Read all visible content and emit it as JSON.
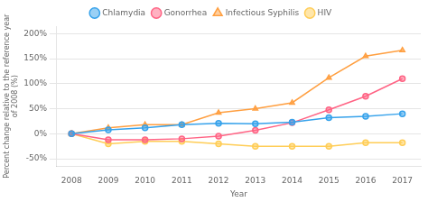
{
  "chart_data": {
    "type": "line",
    "x": [
      2008,
      2009,
      2010,
      2011,
      2012,
      2013,
      2014,
      2015,
      2016,
      2017
    ],
    "series": [
      {
        "name": "Chlamydia",
        "marker": "circle",
        "values": [
          0,
          8,
          12,
          18,
          21,
          20,
          23,
          32,
          35,
          40
        ]
      },
      {
        "name": "Gonorrhea",
        "marker": "circle",
        "values": [
          0,
          -12,
          -12,
          -10,
          -5,
          7,
          22,
          48,
          75,
          110
        ]
      },
      {
        "name": "Infectious Syphilis",
        "marker": "triangle",
        "values": [
          0,
          12,
          18,
          18,
          42,
          50,
          62,
          112,
          155,
          167
        ]
      },
      {
        "name": "HIV",
        "marker": "circle",
        "values": [
          0,
          -20,
          -15,
          -15,
          -20,
          -25,
          -25,
          -25,
          -18,
          -18
        ]
      }
    ],
    "xlabel": "Year",
    "ylabel": "Percent change relative to the reference year\nof 2008 (%)",
    "xlim": [
      2007.6,
      2017.5
    ],
    "xticks": [
      2008,
      2009,
      2010,
      2011,
      2012,
      2013,
      2014,
      2015,
      2016,
      2017
    ],
    "ylim": [
      -65,
      215
    ],
    "yticks": [
      {
        "value": -50,
        "label": "-50%"
      },
      {
        "value": 0,
        "label": "0%"
      },
      {
        "value": 50,
        "label": "50%"
      },
      {
        "value": 100,
        "label": "100%"
      },
      {
        "value": 150,
        "label": "150%"
      },
      {
        "value": 200,
        "label": "200%"
      }
    ],
    "grid": "y",
    "legend": "top"
  }
}
